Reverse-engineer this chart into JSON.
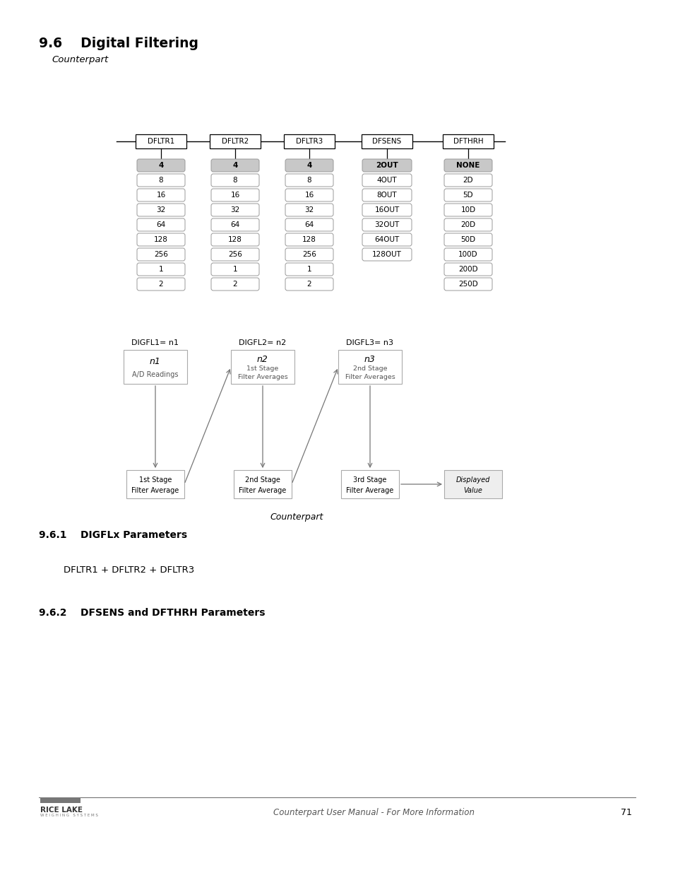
{
  "title": "9.6    Digital Filtering",
  "subtitle": "Counterpart",
  "section1": "9.6.1    DIGFLx Parameters",
  "section2": "9.6.2    DFSENS and DFTHRH Parameters",
  "section1_body": "DFLTR1 + DFLTR2 + DFLTR3",
  "footer_text": "Counterpart User Manual - For More Information",
  "footer_page": "71",
  "diagram1_caption": "Counterpart",
  "columns": [
    {
      "header": "DFLTR1",
      "values": [
        "4",
        "8",
        "16",
        "32",
        "64",
        "128",
        "256",
        "1",
        "2"
      ]
    },
    {
      "header": "DFLTR2",
      "values": [
        "4",
        "8",
        "16",
        "32",
        "64",
        "128",
        "256",
        "1",
        "2"
      ]
    },
    {
      "header": "DFLTR3",
      "values": [
        "4",
        "8",
        "16",
        "32",
        "64",
        "128",
        "256",
        "1",
        "2"
      ]
    },
    {
      "header": "DFSENS",
      "values": [
        "2OUT",
        "4OUT",
        "8OUT",
        "16OUT",
        "32OUT",
        "64OUT",
        "128OUT"
      ]
    },
    {
      "header": "DFTHRH",
      "values": [
        "NONE",
        "2D",
        "5D",
        "10D",
        "20D",
        "50D",
        "100D",
        "200D",
        "250D"
      ]
    }
  ],
  "bg_color": "#ffffff",
  "text_color": "#000000",
  "footer_line_color": "#555555"
}
